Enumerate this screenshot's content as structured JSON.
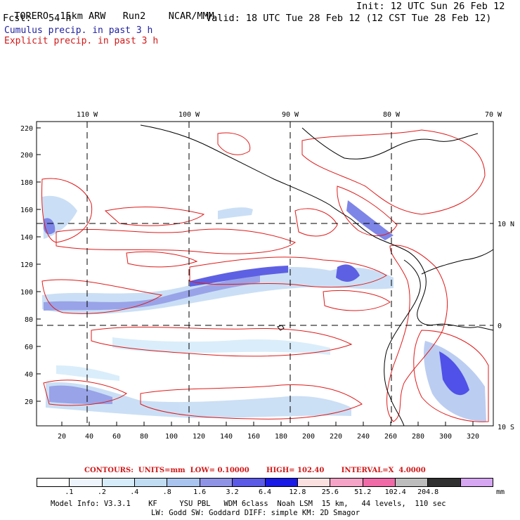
{
  "header": {
    "model": "TORERO",
    "resolution": "15km ARW",
    "run": "Run2",
    "org": "NCAR/MMM",
    "init": "Init: 12 UTC Sun 26 Feb 12",
    "fcst_label": "Fcst:",
    "fcst_value": "54 h",
    "valid": "Valid: 18 UTC Tue 28 Feb 12 (12 CST Tue 28 Feb 12)"
  },
  "legend": {
    "cumulus": "Cumulus precip. in past 3 h",
    "explicit": "Explicit precip. in past 3 h"
  },
  "axes": {
    "top_lon": [
      "110 W",
      "100 W",
      "90 W",
      "80 W",
      "70 W"
    ],
    "right_lat": [
      "10 N",
      "0",
      "10 S"
    ],
    "left_ticks": [
      "220",
      "200",
      "180",
      "160",
      "140",
      "120",
      "100",
      "80",
      "60",
      "40",
      "20"
    ],
    "bottom_ticks": [
      "20",
      "40",
      "60",
      "80",
      "100",
      "120",
      "140",
      "160",
      "180",
      "200",
      "220",
      "240",
      "260",
      "280",
      "300",
      "320"
    ]
  },
  "contours": {
    "label": "CONTOURS:",
    "units": "UNITS=mm",
    "low": "LOW= 0.10000",
    "high": "HIGH= 102.40",
    "interval": "INTERVAL=X  4.0000"
  },
  "colorbar": {
    "colors": [
      "#ffffff",
      "#eef4fb",
      "#d6ecfa",
      "#c0dcf2",
      "#a9c4ee",
      "#8f93e6",
      "#5a5ae6",
      "#1a1ae6",
      "#fbe0e0",
      "#f5a3c6",
      "#f06aa8",
      "#bdbdbd",
      "#303030",
      "#d6a6f2"
    ],
    "labels": [
      ".1",
      ".2",
      ".4",
      ".8",
      "1.6",
      "3.2",
      "6.4",
      "12.8",
      "25.6",
      "51.2",
      "102.4",
      "204.8"
    ],
    "unit": "mm"
  },
  "footer": {
    "line1": "Model Info: V3.3.1    KF     YSU PBL   WDM 6class  Noah LSM  15 km,   44 levels,  110 sec",
    "line2": "LW: Godd SW: Goddard DIFF: simple KM: 2D Smagor"
  }
}
